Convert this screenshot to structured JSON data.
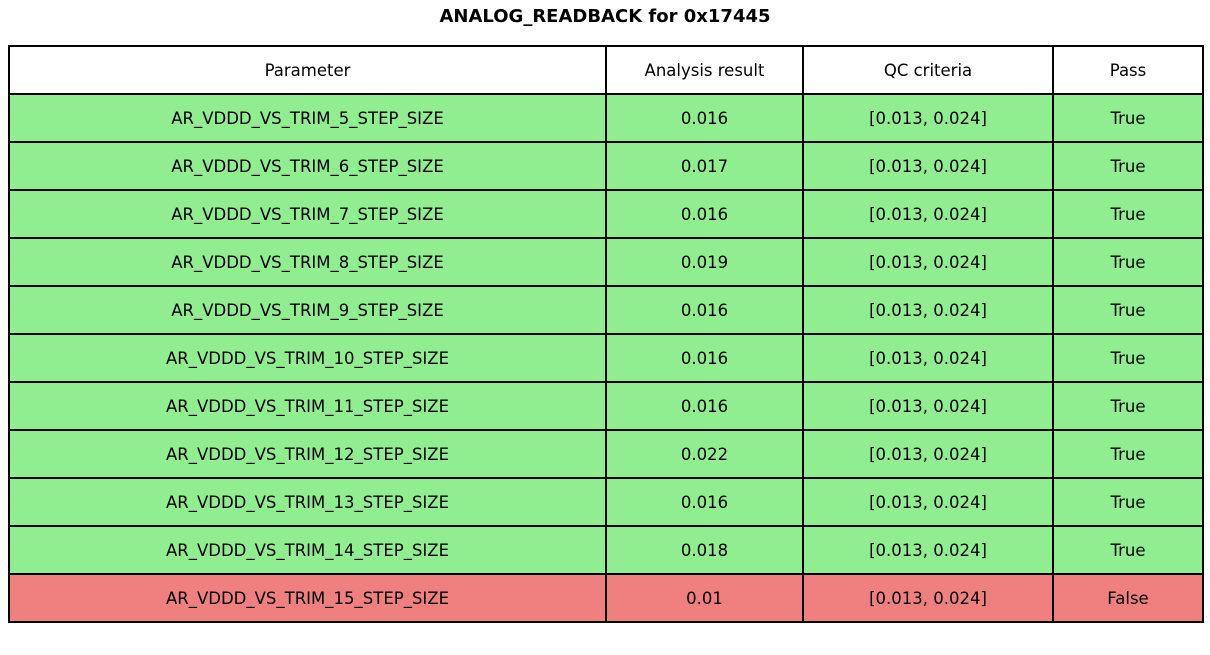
{
  "title": "ANALOG_READBACK for 0x17445",
  "table": {
    "columns": [
      "Parameter",
      "Analysis result",
      "QC criteria",
      "Pass"
    ],
    "rows": [
      {
        "parameter": "AR_VDDD_VS_TRIM_5_STEP_SIZE",
        "result": "0.016",
        "criteria": "[0.013, 0.024]",
        "pass": "True"
      },
      {
        "parameter": "AR_VDDD_VS_TRIM_6_STEP_SIZE",
        "result": "0.017",
        "criteria": "[0.013, 0.024]",
        "pass": "True"
      },
      {
        "parameter": "AR_VDDD_VS_TRIM_7_STEP_SIZE",
        "result": "0.016",
        "criteria": "[0.013, 0.024]",
        "pass": "True"
      },
      {
        "parameter": "AR_VDDD_VS_TRIM_8_STEP_SIZE",
        "result": "0.019",
        "criteria": "[0.013, 0.024]",
        "pass": "True"
      },
      {
        "parameter": "AR_VDDD_VS_TRIM_9_STEP_SIZE",
        "result": "0.016",
        "criteria": "[0.013, 0.024]",
        "pass": "True"
      },
      {
        "parameter": "AR_VDDD_VS_TRIM_10_STEP_SIZE",
        "result": "0.016",
        "criteria": "[0.013, 0.024]",
        "pass": "True"
      },
      {
        "parameter": "AR_VDDD_VS_TRIM_11_STEP_SIZE",
        "result": "0.016",
        "criteria": "[0.013, 0.024]",
        "pass": "True"
      },
      {
        "parameter": "AR_VDDD_VS_TRIM_12_STEP_SIZE",
        "result": "0.022",
        "criteria": "[0.013, 0.024]",
        "pass": "True"
      },
      {
        "parameter": "AR_VDDD_VS_TRIM_13_STEP_SIZE",
        "result": "0.016",
        "criteria": "[0.013, 0.024]",
        "pass": "True"
      },
      {
        "parameter": "AR_VDDD_VS_TRIM_14_STEP_SIZE",
        "result": "0.018",
        "criteria": "[0.013, 0.024]",
        "pass": "True"
      },
      {
        "parameter": "AR_VDDD_VS_TRIM_15_STEP_SIZE",
        "result": "0.01",
        "criteria": "[0.013, 0.024]",
        "pass": "False"
      }
    ]
  },
  "colors": {
    "pass_row": "#90ee90",
    "fail_row": "#f08080",
    "header_bg": "#ffffff",
    "border": "#000000"
  }
}
